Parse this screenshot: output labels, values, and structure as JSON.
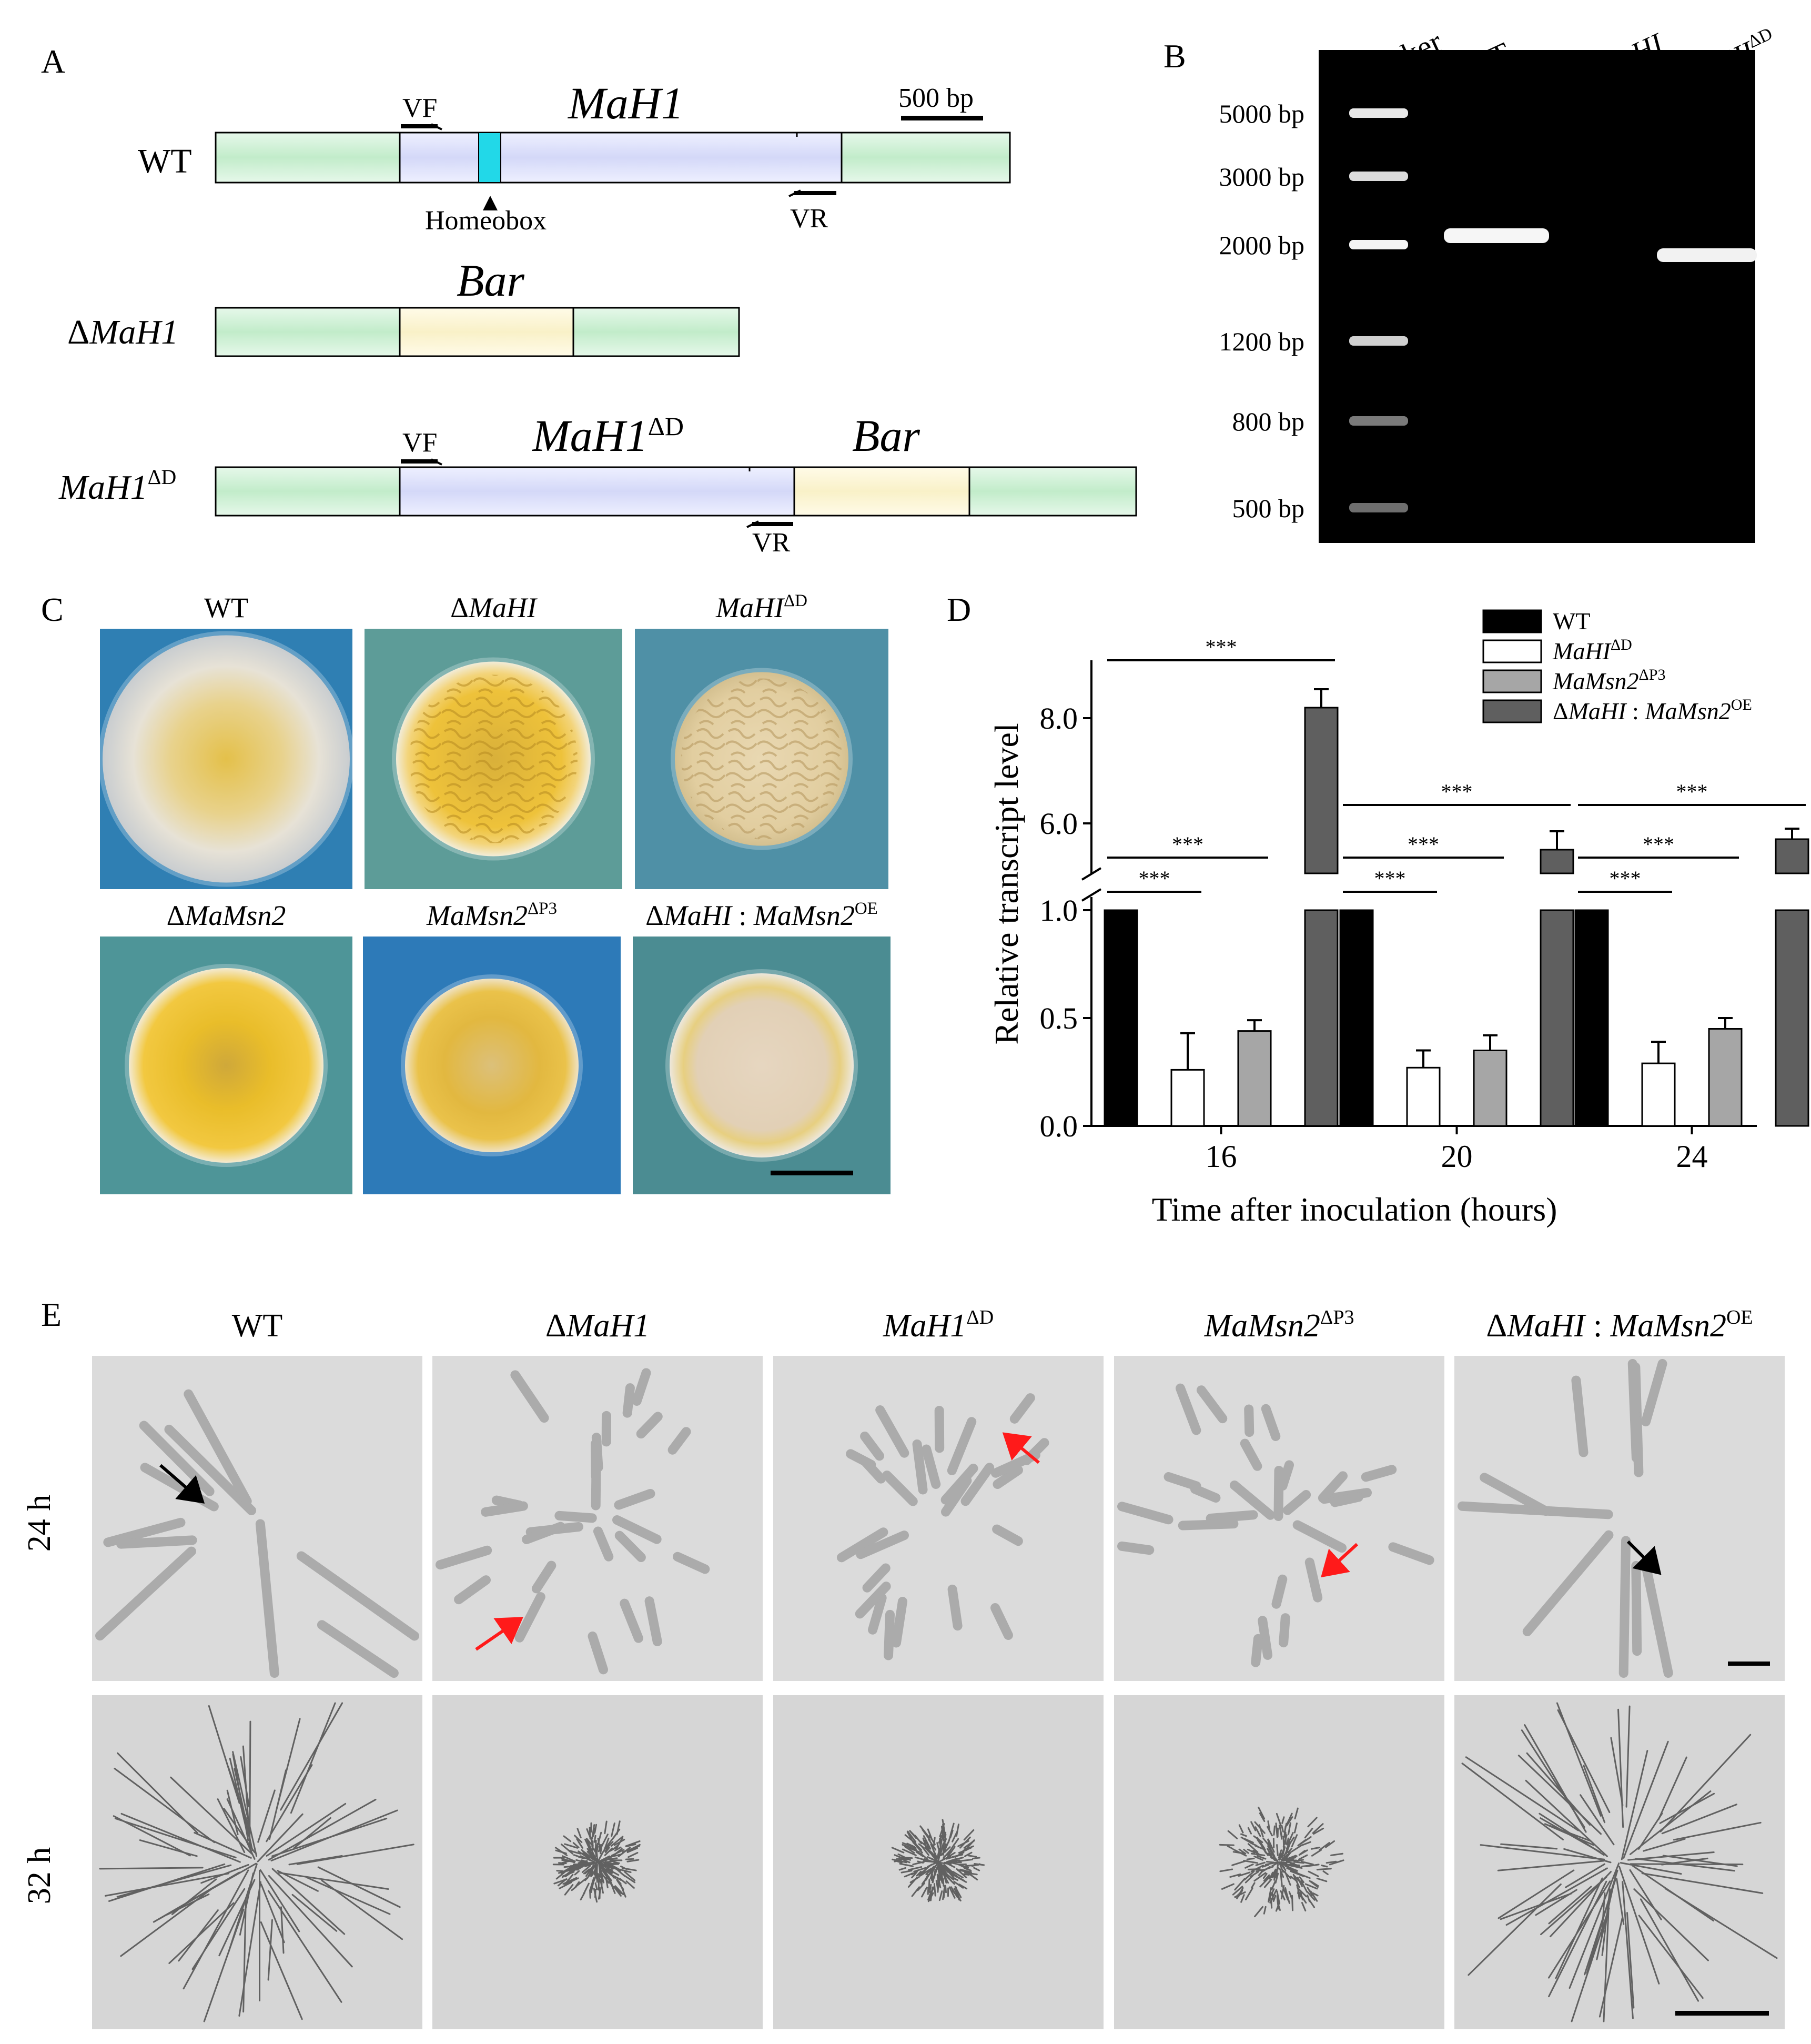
{
  "panel_labels": {
    "A": "A",
    "B": "B",
    "C": "C",
    "D": "D",
    "E": "E"
  },
  "panelA": {
    "scale_label": "500 bp",
    "rows": [
      {
        "name": "WT",
        "gene": "MaH1",
        "primer_f": "VF",
        "primer_r": "VR",
        "feature": "Homeobox"
      },
      {
        "name_prefix": "Δ",
        "name_it": "MaH1",
        "insert": "Bar"
      },
      {
        "name_it": "MaH1",
        "name_sup": "ΔD",
        "gene_it": "MaH1",
        "gene_sup": "ΔD",
        "insert": "Bar",
        "primer_f": "VF",
        "primer_r": "VR"
      }
    ],
    "colors": {
      "flank": "#c9ecd0",
      "gene": "#d9dcf8",
      "homeobox": "#22d8e8",
      "bar": "#fbf5d2"
    }
  },
  "panelB": {
    "lanes": [
      {
        "label": "Marker",
        "italic": false
      },
      {
        "label": "WT",
        "italic": false
      },
      {
        "label_prefix": "Δ",
        "label_it": "MaHI"
      },
      {
        "label_it": "MaHI",
        "label_sup": "ΔD"
      }
    ],
    "ladder": [
      "5000 bp",
      "3000 bp",
      "2000 bp",
      "1200 bp",
      "800 bp",
      "500 bp"
    ]
  },
  "panelC": {
    "plates": [
      {
        "prefix": "",
        "it": "",
        "plain": "WT",
        "sup": "",
        "bg": "#2f7fb3",
        "colony": "white-yellow"
      },
      {
        "prefix": "Δ",
        "it": "MaHI",
        "plain": "",
        "sup": "",
        "bg": "#5d9c98",
        "colony": "yellow-wrinkled"
      },
      {
        "prefix": "",
        "it": "MaHI",
        "plain": "",
        "sup": "ΔD",
        "bg": "#4f90a6",
        "colony": "cream-wrinkled"
      },
      {
        "prefix": "Δ",
        "it": "MaMsn2",
        "plain": "",
        "sup": "",
        "bg": "#4e9598",
        "colony": "yellow"
      },
      {
        "prefix": "",
        "it": "MaMsn2",
        "plain": "",
        "sup": "ΔP3",
        "bg": "#2d7ab8",
        "colony": "yellow-center"
      },
      {
        "prefix": "Δ",
        "it": "MaHI",
        "plain": " : ",
        "it2": "MaMsn2",
        "sup": "OE",
        "bg": "#4b8c92",
        "colony": "cream"
      }
    ]
  },
  "chart_data": {
    "type": "bar",
    "title": "",
    "xlabel": "Time after inoculation (hours)",
    "ylabel": "Relative transcript level",
    "categories": [
      "16",
      "20",
      "24"
    ],
    "axis_break": [
      1.0,
      5.0
    ],
    "yticks": [
      "0.0",
      "0.5",
      "1.0",
      "6.0",
      "8.0"
    ],
    "significance": "***",
    "series": [
      {
        "legend_plain": "WT",
        "values": [
          1.0,
          1.0,
          1.0
        ],
        "errors": [
          0,
          0,
          0
        ],
        "color": "#000000"
      },
      {
        "legend_it": "MaHI",
        "legend_sup": "ΔD",
        "values": [
          0.26,
          0.27,
          0.29
        ],
        "errors": [
          0.17,
          0.08,
          0.1
        ],
        "color": "#ffffff"
      },
      {
        "legend_it": "MaMsn2",
        "legend_sup": "ΔP3",
        "values": [
          0.44,
          0.35,
          0.45
        ],
        "errors": [
          0.05,
          0.07,
          0.05
        ],
        "color": "#a6a6a6"
      },
      {
        "legend_prefix": "Δ",
        "legend_it": "MaHI",
        "legend_plain": " : ",
        "legend_it2": "MaMsn2",
        "legend_sup": "OE",
        "values": [
          8.2,
          5.5,
          5.7
        ],
        "errors": [
          0.35,
          0.35,
          0.2
        ],
        "color": "#5f5f5f"
      }
    ]
  },
  "panelE": {
    "columns": [
      {
        "prefix": "",
        "it": "",
        "plain": "WT",
        "sup": ""
      },
      {
        "prefix": "Δ",
        "it": "MaH1",
        "plain": "",
        "sup": ""
      },
      {
        "prefix": "",
        "it": "MaH1",
        "plain": "",
        "sup": "ΔD"
      },
      {
        "prefix": "",
        "it": "MaMsn2",
        "plain": "",
        "sup": "ΔP3"
      },
      {
        "prefix": "Δ",
        "it": "MaHI",
        "plain": " : ",
        "it2": "MaMsn2",
        "sup": "OE"
      }
    ],
    "rows": [
      "24 h",
      "32 h"
    ]
  }
}
